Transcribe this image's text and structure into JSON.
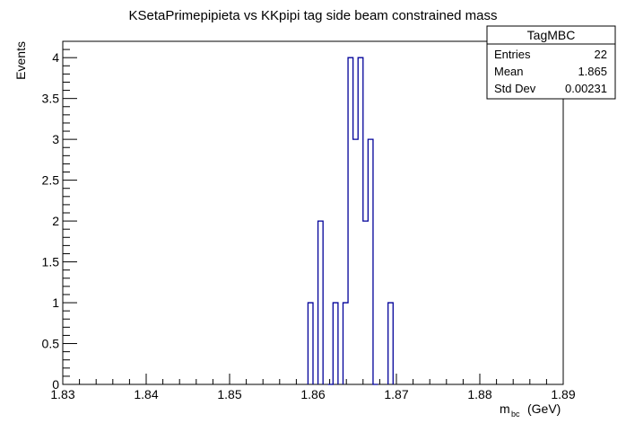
{
  "chart_data": {
    "type": "histogram",
    "title": "KSetaPrimepipieta vs KKpipi tag side beam constrained mass",
    "ylabel": "Events",
    "xlabel_main": "m",
    "xlabel_sub": "bc",
    "xlabel_unit": "(GeV)",
    "xlim": [
      1.83,
      1.89
    ],
    "ylim": [
      0,
      4.2
    ],
    "x_ticks": [
      1.83,
      1.84,
      1.85,
      1.86,
      1.87,
      1.88,
      1.89
    ],
    "x_tick_labels": [
      "1.83",
      "1.84",
      "1.85",
      "1.86",
      "1.87",
      "1.88",
      "1.89"
    ],
    "y_ticks": [
      0,
      0.5,
      1,
      1.5,
      2,
      2.5,
      3,
      3.5,
      4
    ],
    "y_tick_labels": [
      "0",
      "0.5",
      "1",
      "1.5",
      "2",
      "2.5",
      "3",
      "3.5",
      "4"
    ],
    "bin_width": 0.0006,
    "bins": [
      {
        "low": 1.8594,
        "count": 1
      },
      {
        "low": 1.8606,
        "count": 2
      },
      {
        "low": 1.8618,
        "count": 0
      },
      {
        "low": 1.8624,
        "count": 1
      },
      {
        "low": 1.8636,
        "count": 1
      },
      {
        "low": 1.8642,
        "count": 4
      },
      {
        "low": 1.8648,
        "count": 3
      },
      {
        "low": 1.8654,
        "count": 4
      },
      {
        "low": 1.866,
        "count": 2
      },
      {
        "low": 1.8666,
        "count": 3
      },
      {
        "low": 1.8672,
        "count": 0
      },
      {
        "low": 1.869,
        "count": 1
      }
    ],
    "line_color": "#000099",
    "legend_position": "top-right",
    "stats": {
      "name": "TagMBC",
      "rows": [
        {
          "label": "Entries",
          "value": "22"
        },
        {
          "label": "Mean",
          "value": "1.865"
        },
        {
          "label": "Std Dev",
          "value": "0.00231"
        }
      ]
    }
  }
}
